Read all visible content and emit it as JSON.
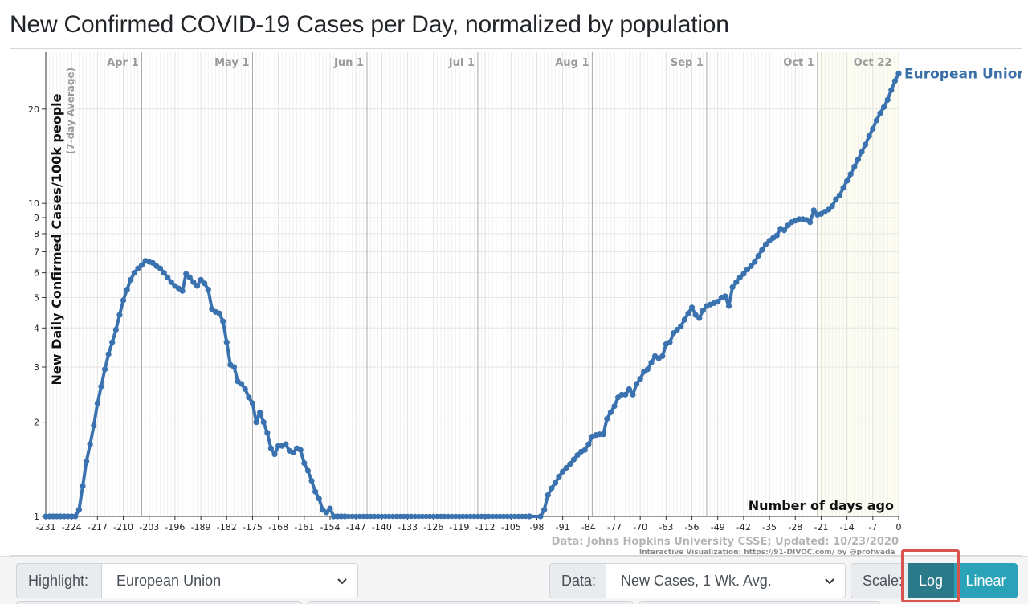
{
  "page": {
    "title": "New Confirmed COVID-19 Cases per Day, normalized by population"
  },
  "controls": {
    "highlight_label": "Highlight:",
    "highlight_value": "European Union",
    "data_label": "Data:",
    "data_value": "New Cases, 1 Wk. Avg.",
    "scale_label": "Scale:",
    "log_label": "Log",
    "linear_label": "Linear",
    "active_scale": "Log"
  },
  "colors": {
    "series": "#3a72b0",
    "label_blue": "#3a6fa8",
    "active_button": "#2b7a8a",
    "inactive_button": "#2aa3b8",
    "highlight": "#d9534f"
  },
  "chart_data": {
    "type": "line",
    "title": "New Confirmed COVID-19 Cases per Day, normalized by population",
    "ylabel": "New Daily Confirmed Cases/100k people",
    "ylabel_sub": "(7-day Average)",
    "xlabel": "Number of days ago",
    "yscale": "log",
    "ylim": [
      1,
      27
    ],
    "xlim": [
      -231,
      0
    ],
    "x_ticks": [
      -231,
      -224,
      -217,
      -210,
      -203,
      -196,
      -189,
      -182,
      -175,
      -168,
      -161,
      -154,
      -147,
      -140,
      -133,
      -126,
      -119,
      -112,
      -105,
      -98,
      -91,
      -84,
      -77,
      -70,
      -63,
      -56,
      -49,
      -42,
      -35,
      -28,
      -21,
      -14,
      -7,
      0
    ],
    "y_ticks": [
      1,
      2,
      3,
      4,
      5,
      6,
      7,
      8,
      9,
      10,
      20
    ],
    "date_markers": [
      {
        "label": "Apr 1",
        "day": -205
      },
      {
        "label": "May 1",
        "day": -175
      },
      {
        "label": "Jun 1",
        "day": -144
      },
      {
        "label": "Jul 1",
        "day": -114
      },
      {
        "label": "Aug 1",
        "day": -83
      },
      {
        "label": "Sep 1",
        "day": -52
      },
      {
        "label": "Oct 1",
        "day": -22
      },
      {
        "label": "Oct 22",
        "day": -1
      }
    ],
    "source_text": "Data: Johns Hopkins University CSSE; Updated: 10/23/2020",
    "credit_text": "Interactive Visualization: https://91-DIVOC.com/ by @profwade_",
    "series": [
      {
        "name": "European Union",
        "points": [
          [
            -231,
            1.0
          ],
          [
            -230,
            1.0
          ],
          [
            -229,
            1.0
          ],
          [
            -228,
            1.0
          ],
          [
            -227,
            1.0
          ],
          [
            -226,
            1.0
          ],
          [
            -225,
            1.0
          ],
          [
            -224,
            1.0
          ],
          [
            -223,
            1.0
          ],
          [
            -222,
            1.05
          ],
          [
            -221,
            1.25
          ],
          [
            -220,
            1.5
          ],
          [
            -219,
            1.7
          ],
          [
            -218,
            1.95
          ],
          [
            -217,
            2.3
          ],
          [
            -216,
            2.6
          ],
          [
            -215,
            2.95
          ],
          [
            -214,
            3.3
          ],
          [
            -213,
            3.6
          ],
          [
            -212,
            3.95
          ],
          [
            -211,
            4.4
          ],
          [
            -210,
            4.9
          ],
          [
            -209,
            5.3
          ],
          [
            -208,
            5.7
          ],
          [
            -207,
            6.0
          ],
          [
            -206,
            6.2
          ],
          [
            -205,
            6.35
          ],
          [
            -204,
            6.55
          ],
          [
            -203,
            6.5
          ],
          [
            -202,
            6.45
          ],
          [
            -201,
            6.3
          ],
          [
            -200,
            6.2
          ],
          [
            -199,
            6.0
          ],
          [
            -198,
            5.8
          ],
          [
            -197,
            5.6
          ],
          [
            -196,
            5.45
          ],
          [
            -195,
            5.35
          ],
          [
            -194,
            5.25
          ],
          [
            -193,
            5.95
          ],
          [
            -192,
            5.8
          ],
          [
            -191,
            5.6
          ],
          [
            -190,
            5.45
          ],
          [
            -189,
            5.7
          ],
          [
            -188,
            5.55
          ],
          [
            -187,
            5.3
          ],
          [
            -186,
            4.6
          ],
          [
            -185,
            4.5
          ],
          [
            -184,
            4.45
          ],
          [
            -183,
            4.2
          ],
          [
            -182,
            3.6
          ],
          [
            -181,
            3.05
          ],
          [
            -180,
            3.0
          ],
          [
            -179,
            2.7
          ],
          [
            -178,
            2.65
          ],
          [
            -177,
            2.55
          ],
          [
            -176,
            2.4
          ],
          [
            -175,
            2.3
          ],
          [
            -174,
            2.0
          ],
          [
            -173,
            2.15
          ],
          [
            -172,
            2.0
          ],
          [
            -171,
            1.85
          ],
          [
            -170,
            1.65
          ],
          [
            -169,
            1.58
          ],
          [
            -168,
            1.68
          ],
          [
            -167,
            1.68
          ],
          [
            -166,
            1.7
          ],
          [
            -165,
            1.62
          ],
          [
            -164,
            1.6
          ],
          [
            -163,
            1.65
          ],
          [
            -162,
            1.63
          ],
          [
            -161,
            1.48
          ],
          [
            -160,
            1.4
          ],
          [
            -159,
            1.3
          ],
          [
            -158,
            1.2
          ],
          [
            -157,
            1.14
          ],
          [
            -156,
            1.05
          ],
          [
            -155,
            1.03
          ],
          [
            -154,
            1.06
          ],
          [
            -153,
            1.0
          ],
          [
            -152,
            1.0
          ],
          [
            -151,
            1.0
          ],
          [
            -150,
            1.0
          ],
          [
            -140,
            1.0
          ],
          [
            -130,
            1.0
          ],
          [
            -120,
            1.0
          ],
          [
            -110,
            1.0
          ],
          [
            -100,
            1.0
          ],
          [
            -97,
            1.0
          ],
          [
            -96,
            1.05
          ],
          [
            -95,
            1.17
          ],
          [
            -94,
            1.23
          ],
          [
            -93,
            1.28
          ],
          [
            -92,
            1.34
          ],
          [
            -91,
            1.39
          ],
          [
            -90,
            1.43
          ],
          [
            -89,
            1.47
          ],
          [
            -88,
            1.52
          ],
          [
            -87,
            1.57
          ],
          [
            -86,
            1.61
          ],
          [
            -85,
            1.63
          ],
          [
            -84,
            1.7
          ],
          [
            -83,
            1.8
          ],
          [
            -82,
            1.82
          ],
          [
            -81,
            1.83
          ],
          [
            -80,
            1.83
          ],
          [
            -79,
            2.05
          ],
          [
            -78,
            2.15
          ],
          [
            -77,
            2.25
          ],
          [
            -76,
            2.4
          ],
          [
            -75,
            2.45
          ],
          [
            -74,
            2.45
          ],
          [
            -73,
            2.55
          ],
          [
            -72,
            2.45
          ],
          [
            -71,
            2.65
          ],
          [
            -70,
            2.75
          ],
          [
            -69,
            2.9
          ],
          [
            -68,
            2.95
          ],
          [
            -67,
            3.1
          ],
          [
            -66,
            3.25
          ],
          [
            -65,
            3.2
          ],
          [
            -64,
            3.25
          ],
          [
            -63,
            3.55
          ],
          [
            -62,
            3.6
          ],
          [
            -61,
            3.85
          ],
          [
            -60,
            3.95
          ],
          [
            -59,
            4.05
          ],
          [
            -58,
            4.25
          ],
          [
            -57,
            4.45
          ],
          [
            -56,
            4.65
          ],
          [
            -55,
            4.4
          ],
          [
            -54,
            4.3
          ],
          [
            -53,
            4.55
          ],
          [
            -52,
            4.7
          ],
          [
            -51,
            4.75
          ],
          [
            -50,
            4.8
          ],
          [
            -49,
            4.85
          ],
          [
            -48,
            5.0
          ],
          [
            -47,
            5.05
          ],
          [
            -46,
            4.7
          ],
          [
            -45,
            5.4
          ],
          [
            -44,
            5.6
          ],
          [
            -43,
            5.8
          ],
          [
            -42,
            5.95
          ],
          [
            -41,
            6.15
          ],
          [
            -40,
            6.3
          ],
          [
            -39,
            6.5
          ],
          [
            -38,
            6.8
          ],
          [
            -37,
            7.1
          ],
          [
            -36,
            7.4
          ],
          [
            -35,
            7.6
          ],
          [
            -34,
            7.75
          ],
          [
            -33,
            7.9
          ],
          [
            -32,
            8.3
          ],
          [
            -31,
            8.2
          ],
          [
            -30,
            8.5
          ],
          [
            -29,
            8.7
          ],
          [
            -28,
            8.8
          ],
          [
            -27,
            8.9
          ],
          [
            -26,
            8.9
          ],
          [
            -25,
            8.85
          ],
          [
            -24,
            8.7
          ],
          [
            -23,
            9.5
          ],
          [
            -22,
            9.2
          ],
          [
            -21,
            9.25
          ],
          [
            -20,
            9.4
          ],
          [
            -19,
            9.55
          ],
          [
            -18,
            9.8
          ],
          [
            -17,
            10.3
          ],
          [
            -16,
            10.6
          ],
          [
            -15,
            11.2
          ],
          [
            -14,
            11.8
          ],
          [
            -13,
            12.4
          ],
          [
            -12,
            13.1
          ],
          [
            -11,
            13.8
          ],
          [
            -10,
            14.6
          ],
          [
            -9,
            15.4
          ],
          [
            -8,
            16.4
          ],
          [
            -7,
            17.3
          ],
          [
            -6,
            18.4
          ],
          [
            -5,
            19.4
          ],
          [
            -4,
            20.3
          ],
          [
            -3,
            21.4
          ],
          [
            -2,
            23.0
          ],
          [
            -1,
            24.6
          ],
          [
            0,
            26.0
          ]
        ]
      }
    ]
  }
}
